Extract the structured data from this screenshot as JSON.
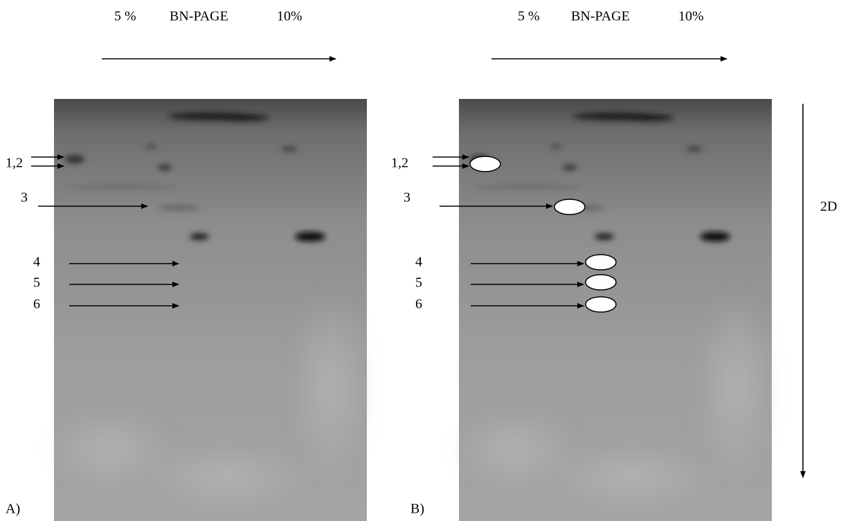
{
  "panels": [
    {
      "label": "A)",
      "header": {
        "low": "5 %",
        "title": "BN-PAGE",
        "high": "10%"
      },
      "markers": [
        "1,2",
        "3",
        "4",
        "5",
        "6"
      ]
    },
    {
      "label": "B)",
      "header": {
        "low": "5 %",
        "title": "BN-PAGE",
        "high": "10%"
      },
      "markers": [
        "1,2",
        "3",
        "4",
        "5",
        "6"
      ]
    }
  ],
  "axis_label": "2D"
}
